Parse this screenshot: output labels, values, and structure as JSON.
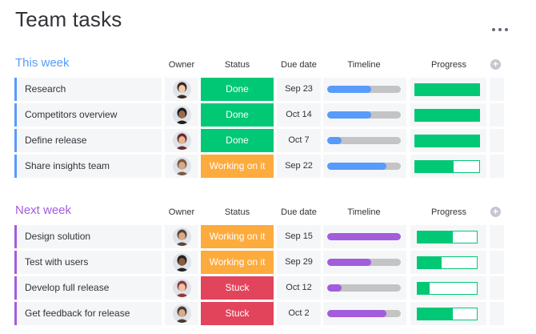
{
  "page": {
    "title": "Team tasks"
  },
  "colors": {
    "done": "#00c875",
    "working": "#fdab3d",
    "stuck": "#e2445c",
    "blue": "#579bfc",
    "purple": "#a25ddc",
    "progress": "#00c875"
  },
  "columns": {
    "owner": "Owner",
    "status": "Status",
    "due": "Due date",
    "timeline": "Timeline",
    "progress": "Progress"
  },
  "groups": [
    {
      "title": "This week",
      "color": "#579bfc",
      "rows": [
        {
          "name": "Research",
          "status": "Done",
          "status_color": "#00c875",
          "due": "Sep 23",
          "timeline_fraction": 0.6,
          "progress_fraction": 1.0,
          "avatar": "avatar-1"
        },
        {
          "name": "Competitors overview",
          "status": "Done",
          "status_color": "#00c875",
          "due": "Oct 14",
          "timeline_fraction": 0.6,
          "progress_fraction": 1.0,
          "avatar": "avatar-2"
        },
        {
          "name": "Define release",
          "status": "Done",
          "status_color": "#00c875",
          "due": "Oct 7",
          "timeline_fraction": 0.2,
          "progress_fraction": 1.0,
          "avatar": "avatar-3"
        },
        {
          "name": "Share insights team",
          "status": "Working on it",
          "status_color": "#fdab3d",
          "due": "Sep 22",
          "timeline_fraction": 0.8,
          "progress_fraction": 0.6,
          "avatar": "avatar-4"
        }
      ]
    },
    {
      "title": "Next week",
      "color": "#a25ddc",
      "rows": [
        {
          "name": "Design solution",
          "status": "Working on it",
          "status_color": "#fdab3d",
          "due": "Sep 15",
          "timeline_fraction": 1.0,
          "progress_fraction": 0.6,
          "avatar": "avatar-5"
        },
        {
          "name": "Test with users",
          "status": "Working on it",
          "status_color": "#fdab3d",
          "due": "Sep 29",
          "timeline_fraction": 0.6,
          "progress_fraction": 0.4,
          "avatar": "avatar-6"
        },
        {
          "name": "Develop full release",
          "status": "Stuck",
          "status_color": "#e2445c",
          "due": "Oct 12",
          "timeline_fraction": 0.2,
          "progress_fraction": 0.2,
          "avatar": "avatar-7"
        },
        {
          "name": "Get feedback for release",
          "status": "Stuck",
          "status_color": "#e2445c",
          "due": "Oct 2",
          "timeline_fraction": 0.8,
          "progress_fraction": 0.6,
          "avatar": "avatar-8"
        }
      ]
    }
  ]
}
